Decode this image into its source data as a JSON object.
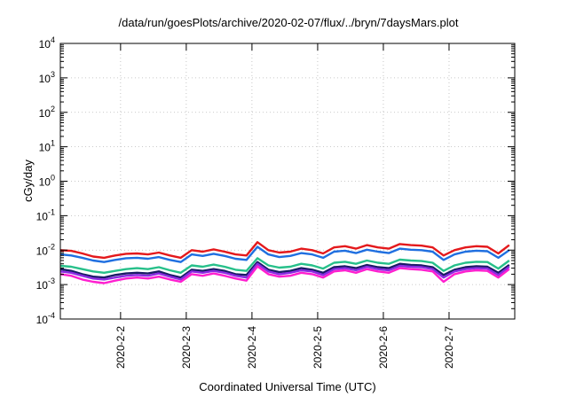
{
  "chart_data": {
    "type": "line",
    "title": "/data/run/goesPlots/archive/2020-02-07/flux/../bryn/7daysMars.plot",
    "xlabel": "Coordinated Universal Time (UTC)",
    "ylabel": "cGy/day",
    "yscale": "log",
    "ylim": [
      0.0001,
      10000
    ],
    "y_ticks": [
      {
        "base": "10",
        "exp": "4"
      },
      {
        "base": "10",
        "exp": "3"
      },
      {
        "base": "10",
        "exp": "2"
      },
      {
        "base": "10",
        "exp": "1"
      },
      {
        "base": "10",
        "exp": "0"
      },
      {
        "base": "10",
        "exp": "-1"
      },
      {
        "base": "10",
        "exp": "-2"
      },
      {
        "base": "10",
        "exp": "-3"
      },
      {
        "base": "10",
        "exp": "-4"
      }
    ],
    "x_ticks": [
      "2020-2-2",
      "2020-2-3",
      "2020-2-4",
      "2020-2-5",
      "2020-2-6",
      "2020-2-7"
    ],
    "xlim": [
      "2020-02-01T02:00",
      "2020-02-08T00:00"
    ],
    "grid": true,
    "x": [
      "2020-02-01T02:00",
      "2020-02-01T06:00",
      "2020-02-01T10:00",
      "2020-02-01T14:00",
      "2020-02-01T18:00",
      "2020-02-01T22:00",
      "2020-02-02T02:00",
      "2020-02-02T06:00",
      "2020-02-02T10:00",
      "2020-02-02T14:00",
      "2020-02-02T18:00",
      "2020-02-02T22:00",
      "2020-02-03T02:00",
      "2020-02-03T06:00",
      "2020-02-03T10:00",
      "2020-02-03T14:00",
      "2020-02-03T18:00",
      "2020-02-03T22:00",
      "2020-02-04T02:00",
      "2020-02-04T06:00",
      "2020-02-04T10:00",
      "2020-02-04T14:00",
      "2020-02-04T18:00",
      "2020-02-04T22:00",
      "2020-02-05T02:00",
      "2020-02-05T06:00",
      "2020-02-05T10:00",
      "2020-02-05T14:00",
      "2020-02-05T18:00",
      "2020-02-05T22:00",
      "2020-02-06T02:00",
      "2020-02-06T06:00",
      "2020-02-06T10:00",
      "2020-02-06T14:00",
      "2020-02-06T18:00",
      "2020-02-06T22:00",
      "2020-02-07T02:00",
      "2020-02-07T06:00",
      "2020-02-07T10:00",
      "2020-02-07T14:00",
      "2020-02-07T18:00",
      "2020-02-07T22:00"
    ],
    "series": [
      {
        "color": "#e4191c",
        "values": [
          0.01,
          0.0095,
          0.008,
          0.0065,
          0.006,
          0.007,
          0.0078,
          0.008,
          0.0075,
          0.0085,
          0.007,
          0.006,
          0.01,
          0.009,
          0.0105,
          0.009,
          0.0075,
          0.007,
          0.017,
          0.01,
          0.0085,
          0.009,
          0.011,
          0.01,
          0.008,
          0.012,
          0.013,
          0.011,
          0.014,
          0.012,
          0.011,
          0.015,
          0.014,
          0.0135,
          0.012,
          0.007,
          0.01,
          0.012,
          0.013,
          0.0125,
          0.008,
          0.014
        ]
      },
      {
        "color": "#1f6fe0",
        "values": [
          0.0075,
          0.007,
          0.006,
          0.005,
          0.0045,
          0.0052,
          0.0058,
          0.006,
          0.0056,
          0.0063,
          0.0052,
          0.0045,
          0.0075,
          0.0068,
          0.0078,
          0.0068,
          0.0056,
          0.0052,
          0.0125,
          0.0075,
          0.0063,
          0.0068,
          0.0082,
          0.0075,
          0.006,
          0.009,
          0.0096,
          0.0082,
          0.0103,
          0.009,
          0.0082,
          0.011,
          0.0103,
          0.01,
          0.009,
          0.0052,
          0.0075,
          0.009,
          0.0096,
          0.0093,
          0.006,
          0.01
        ]
      },
      {
        "color": "#27c08a",
        "values": [
          0.0035,
          0.0033,
          0.0028,
          0.0024,
          0.0022,
          0.0025,
          0.0028,
          0.003,
          0.0028,
          0.0032,
          0.0026,
          0.0022,
          0.0036,
          0.0033,
          0.0038,
          0.0033,
          0.0027,
          0.0025,
          0.0058,
          0.0036,
          0.0031,
          0.0033,
          0.004,
          0.0036,
          0.0029,
          0.0043,
          0.0046,
          0.004,
          0.005,
          0.0043,
          0.004,
          0.0053,
          0.005,
          0.0048,
          0.0043,
          0.0025,
          0.0036,
          0.0043,
          0.0046,
          0.0045,
          0.0029,
          0.005
        ]
      },
      {
        "color": "#1a1a66",
        "values": [
          0.0028,
          0.0025,
          0.002,
          0.0017,
          0.0016,
          0.0019,
          0.0021,
          0.0022,
          0.0021,
          0.0024,
          0.0019,
          0.0016,
          0.0027,
          0.0025,
          0.0028,
          0.0025,
          0.002,
          0.0019,
          0.0045,
          0.0027,
          0.0023,
          0.0025,
          0.003,
          0.0027,
          0.0022,
          0.0032,
          0.0034,
          0.003,
          0.0037,
          0.0032,
          0.003,
          0.004,
          0.0037,
          0.0036,
          0.0032,
          0.0019,
          0.0027,
          0.0032,
          0.0034,
          0.0033,
          0.0022,
          0.0037
        ]
      },
      {
        "color": "#8a2be2",
        "values": [
          0.0024,
          0.0022,
          0.0018,
          0.0015,
          0.0014,
          0.0016,
          0.0018,
          0.0019,
          0.0018,
          0.0021,
          0.0017,
          0.0014,
          0.0024,
          0.0022,
          0.0025,
          0.0022,
          0.0018,
          0.0016,
          0.004,
          0.0024,
          0.002,
          0.0022,
          0.0026,
          0.0024,
          0.0019,
          0.0028,
          0.003,
          0.0026,
          0.0033,
          0.0028,
          0.0026,
          0.0035,
          0.0033,
          0.0032,
          0.0028,
          0.0016,
          0.0024,
          0.0028,
          0.003,
          0.0029,
          0.0019,
          0.0033
        ]
      },
      {
        "color": "#ff1fcf",
        "values": [
          0.002,
          0.0018,
          0.0014,
          0.0012,
          0.0011,
          0.0013,
          0.0015,
          0.0016,
          0.0015,
          0.0017,
          0.0014,
          0.0012,
          0.002,
          0.0018,
          0.0021,
          0.0018,
          0.0015,
          0.0013,
          0.0034,
          0.002,
          0.0017,
          0.0018,
          0.0022,
          0.002,
          0.0016,
          0.0024,
          0.0026,
          0.0022,
          0.0028,
          0.0024,
          0.0022,
          0.003,
          0.0028,
          0.0027,
          0.0024,
          0.0012,
          0.002,
          0.0024,
          0.0026,
          0.0025,
          0.0016,
          0.0028
        ]
      }
    ]
  }
}
